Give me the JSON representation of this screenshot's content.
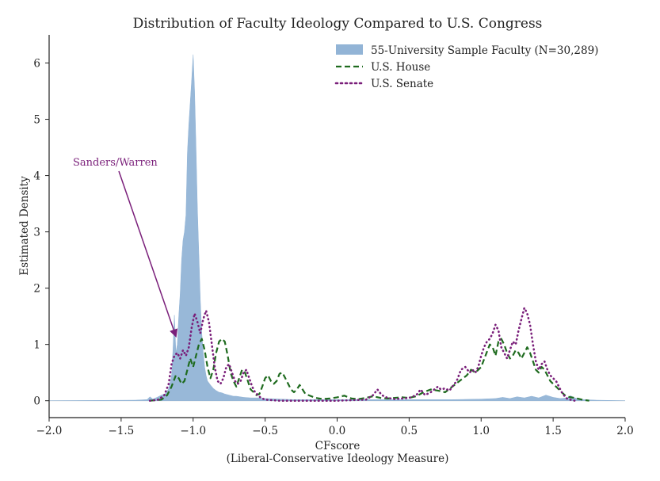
{
  "chart_data": {
    "type": "area",
    "title": "Distribution of Faculty Ideology Compared to U.S. Congress",
    "xlabel": "CFscore",
    "xlabel_sub": "(Liberal-Conservative Ideology Measure)",
    "ylabel": "Estimated Density",
    "xlim": [
      -2.0,
      2.0
    ],
    "ylim": [
      -0.3,
      6.5
    ],
    "xticks": [
      -2.0,
      -1.5,
      -1.0,
      -0.5,
      0.0,
      0.5,
      1.0,
      1.5,
      2.0
    ],
    "xtick_labels": [
      "−2.0",
      "−1.5",
      "−1.0",
      "−0.5",
      "0.0",
      "0.5",
      "1.0",
      "1.5",
      "2.0"
    ],
    "yticks": [
      0,
      1,
      2,
      3,
      4,
      5,
      6
    ],
    "ytick_labels": [
      "0",
      "1",
      "2",
      "3",
      "4",
      "5",
      "6"
    ],
    "grid": false,
    "legend_position": "top-right",
    "series": [
      {
        "name": "55-University Sample Faculty (N=30,289)",
        "style": "filled-area",
        "color": "#92b4d6",
        "x": [
          -2.0,
          -1.4,
          -1.32,
          -1.3,
          -1.28,
          -1.25,
          -1.22,
          -1.19,
          -1.17,
          -1.15,
          -1.14,
          -1.13,
          -1.125,
          -1.12,
          -1.11,
          -1.1,
          -1.09,
          -1.08,
          -1.07,
          -1.06,
          -1.05,
          -1.04,
          -1.03,
          -1.02,
          -1.01,
          -1.0,
          -0.99,
          -0.98,
          -0.97,
          -0.96,
          -0.95,
          -0.94,
          -0.93,
          -0.92,
          -0.91,
          -0.9,
          -0.88,
          -0.86,
          -0.84,
          -0.82,
          -0.8,
          -0.78,
          -0.75,
          -0.72,
          -0.7,
          -0.65,
          -0.6,
          -0.55,
          -0.5,
          -0.4,
          -0.3,
          -0.2,
          -0.1,
          0.0,
          0.2,
          0.4,
          0.6,
          0.8,
          1.0,
          1.1,
          1.15,
          1.2,
          1.25,
          1.3,
          1.35,
          1.4,
          1.45,
          1.5,
          1.55,
          1.6,
          1.62,
          1.65,
          1.68,
          1.72,
          1.8,
          2.0
        ],
        "y": [
          0.0,
          0.01,
          0.02,
          0.07,
          0.03,
          0.06,
          0.1,
          0.13,
          0.22,
          0.45,
          0.9,
          1.52,
          1.25,
          0.85,
          1.0,
          1.5,
          1.9,
          2.5,
          2.85,
          3.0,
          3.3,
          4.4,
          4.9,
          5.3,
          5.7,
          6.15,
          5.5,
          4.5,
          3.4,
          2.6,
          1.8,
          1.2,
          0.85,
          0.6,
          0.45,
          0.35,
          0.28,
          0.22,
          0.18,
          0.15,
          0.14,
          0.12,
          0.1,
          0.08,
          0.08,
          0.06,
          0.05,
          0.05,
          0.04,
          0.03,
          0.02,
          0.02,
          0.02,
          0.02,
          0.02,
          0.02,
          0.02,
          0.02,
          0.03,
          0.04,
          0.06,
          0.04,
          0.07,
          0.05,
          0.08,
          0.05,
          0.1,
          0.06,
          0.04,
          0.05,
          0.09,
          0.05,
          0.03,
          0.02,
          0.01,
          0.0
        ]
      },
      {
        "name": "U.S. House",
        "style": "dashed-line",
        "color": "#1f6b1f",
        "x": [
          -1.3,
          -1.22,
          -1.18,
          -1.15,
          -1.12,
          -1.1,
          -1.08,
          -1.06,
          -1.04,
          -1.02,
          -1.0,
          -0.98,
          -0.96,
          -0.94,
          -0.92,
          -0.9,
          -0.88,
          -0.86,
          -0.84,
          -0.82,
          -0.8,
          -0.78,
          -0.76,
          -0.74,
          -0.72,
          -0.7,
          -0.68,
          -0.66,
          -0.64,
          -0.62,
          -0.6,
          -0.58,
          -0.56,
          -0.54,
          -0.52,
          -0.5,
          -0.48,
          -0.46,
          -0.44,
          -0.42,
          -0.4,
          -0.38,
          -0.36,
          -0.34,
          -0.32,
          -0.3,
          -0.28,
          -0.26,
          -0.24,
          -0.22,
          -0.2,
          -0.18,
          -0.15,
          -0.1,
          -0.05,
          0.0,
          0.05,
          0.1,
          0.15,
          0.2,
          0.25,
          0.3,
          0.35,
          0.4,
          0.45,
          0.5,
          0.55,
          0.6,
          0.65,
          0.7,
          0.75,
          0.8,
          0.85,
          0.9,
          0.93,
          0.96,
          1.0,
          1.03,
          1.06,
          1.08,
          1.1,
          1.12,
          1.14,
          1.16,
          1.18,
          1.2,
          1.22,
          1.24,
          1.26,
          1.28,
          1.3,
          1.32,
          1.34,
          1.36,
          1.38,
          1.4,
          1.42,
          1.44,
          1.46,
          1.48,
          1.5,
          1.52,
          1.54,
          1.56,
          1.58,
          1.6,
          1.65,
          1.7,
          1.75
        ],
        "y": [
          0.0,
          0.02,
          0.1,
          0.25,
          0.45,
          0.4,
          0.3,
          0.35,
          0.55,
          0.75,
          0.6,
          0.8,
          1.0,
          1.1,
          0.9,
          0.6,
          0.4,
          0.55,
          0.85,
          1.05,
          1.1,
          1.05,
          0.8,
          0.5,
          0.35,
          0.25,
          0.4,
          0.55,
          0.5,
          0.35,
          0.2,
          0.15,
          0.1,
          0.12,
          0.25,
          0.4,
          0.45,
          0.35,
          0.3,
          0.35,
          0.48,
          0.5,
          0.4,
          0.3,
          0.2,
          0.15,
          0.2,
          0.28,
          0.2,
          0.12,
          0.1,
          0.08,
          0.05,
          0.03,
          0.04,
          0.06,
          0.09,
          0.04,
          0.03,
          0.05,
          0.08,
          0.05,
          0.04,
          0.05,
          0.06,
          0.05,
          0.08,
          0.15,
          0.2,
          0.18,
          0.15,
          0.25,
          0.35,
          0.45,
          0.55,
          0.5,
          0.6,
          0.8,
          1.0,
          0.95,
          0.8,
          1.05,
          1.1,
          1.0,
          0.85,
          0.75,
          0.8,
          0.9,
          0.85,
          0.75,
          0.85,
          0.95,
          0.85,
          0.7,
          0.55,
          0.5,
          0.6,
          0.55,
          0.45,
          0.35,
          0.3,
          0.25,
          0.2,
          0.15,
          0.1,
          0.07,
          0.05,
          0.02,
          0.0
        ]
      },
      {
        "name": "U.S. Senate",
        "style": "dotted-line",
        "color": "#7a1f7a",
        "x": [
          -1.3,
          -1.24,
          -1.2,
          -1.17,
          -1.15,
          -1.13,
          -1.11,
          -1.09,
          -1.07,
          -1.05,
          -1.03,
          -1.01,
          -0.99,
          -0.97,
          -0.95,
          -0.93,
          -0.91,
          -0.89,
          -0.87,
          -0.85,
          -0.83,
          -0.81,
          -0.79,
          -0.77,
          -0.75,
          -0.73,
          -0.71,
          -0.69,
          -0.67,
          -0.65,
          -0.63,
          -0.61,
          -0.59,
          -0.57,
          -0.55,
          -0.53,
          -0.5,
          -0.45,
          -0.4,
          -0.3,
          -0.2,
          -0.1,
          0.0,
          0.1,
          0.2,
          0.25,
          0.28,
          0.31,
          0.35,
          0.4,
          0.5,
          0.55,
          0.58,
          0.61,
          0.65,
          0.7,
          0.72,
          0.75,
          0.78,
          0.8,
          0.83,
          0.86,
          0.89,
          0.92,
          0.94,
          0.96,
          0.98,
          1.0,
          1.02,
          1.04,
          1.06,
          1.08,
          1.1,
          1.12,
          1.14,
          1.16,
          1.18,
          1.2,
          1.22,
          1.24,
          1.26,
          1.28,
          1.3,
          1.32,
          1.34,
          1.36,
          1.38,
          1.4,
          1.42,
          1.44,
          1.46,
          1.48,
          1.5,
          1.52,
          1.54,
          1.56,
          1.58,
          1.6,
          1.65
        ],
        "y": [
          0.0,
          0.02,
          0.1,
          0.3,
          0.65,
          0.8,
          0.85,
          0.75,
          0.9,
          0.8,
          0.95,
          1.3,
          1.55,
          1.4,
          1.2,
          1.45,
          1.6,
          1.4,
          1.0,
          0.6,
          0.35,
          0.3,
          0.4,
          0.6,
          0.65,
          0.5,
          0.35,
          0.3,
          0.35,
          0.5,
          0.55,
          0.4,
          0.25,
          0.15,
          0.1,
          0.05,
          0.02,
          0.01,
          0.0,
          0.0,
          0.0,
          0.0,
          0.0,
          0.01,
          0.02,
          0.1,
          0.2,
          0.1,
          0.05,
          0.03,
          0.05,
          0.1,
          0.2,
          0.1,
          0.15,
          0.25,
          0.2,
          0.22,
          0.18,
          0.25,
          0.35,
          0.55,
          0.6,
          0.5,
          0.55,
          0.5,
          0.6,
          0.8,
          0.95,
          1.05,
          1.1,
          1.2,
          1.35,
          1.25,
          0.95,
          0.85,
          0.75,
          0.9,
          1.05,
          1.0,
          1.25,
          1.45,
          1.65,
          1.55,
          1.35,
          1.0,
          0.7,
          0.55,
          0.65,
          0.7,
          0.55,
          0.45,
          0.4,
          0.35,
          0.25,
          0.15,
          0.08,
          0.03,
          0.0
        ]
      }
    ],
    "annotations": [
      {
        "text": "Sanders/Warren",
        "color": "#7a1f7a",
        "arrow_to": {
          "x": -1.12,
          "y": 1.15
        }
      }
    ]
  }
}
